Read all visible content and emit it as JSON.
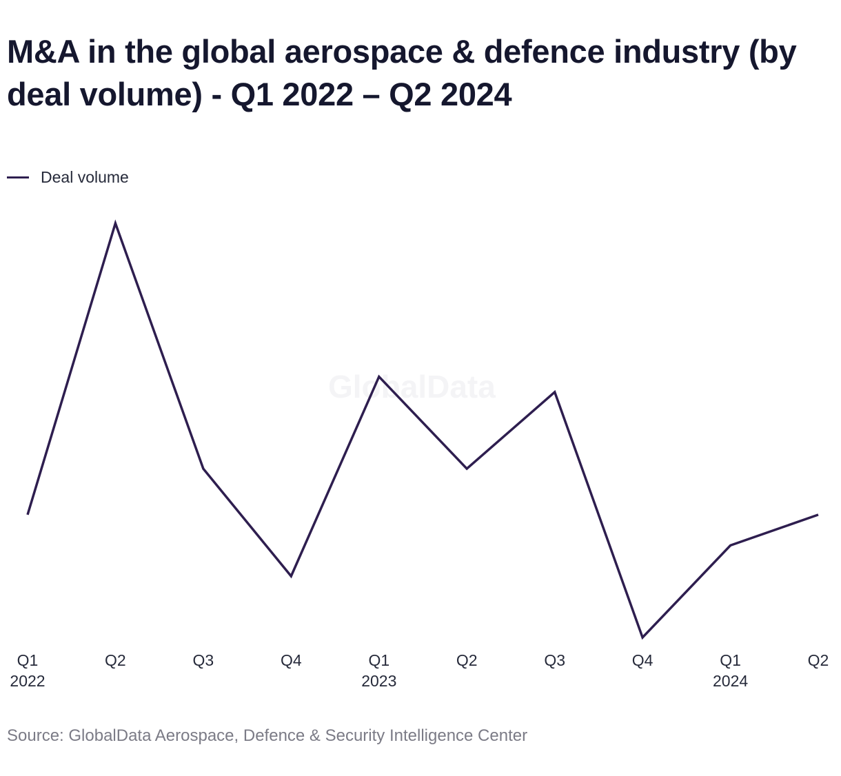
{
  "chart_data": {
    "type": "line",
    "title": "M&A in the global aerospace & defence industry (by deal volume) - Q1 2022 – Q2 2024",
    "categories": [
      "Q1 2022",
      "Q2 2022",
      "Q3 2022",
      "Q4 2022",
      "Q1 2023",
      "Q2 2023",
      "Q3 2023",
      "Q4 2023",
      "Q1 2024",
      "Q2 2024"
    ],
    "tick_labels": [
      {
        "quarter": "Q1",
        "year": "2022"
      },
      {
        "quarter": "Q2",
        "year": ""
      },
      {
        "quarter": "Q3",
        "year": ""
      },
      {
        "quarter": "Q4",
        "year": ""
      },
      {
        "quarter": "Q1",
        "year": "2023"
      },
      {
        "quarter": "Q2",
        "year": ""
      },
      {
        "quarter": "Q3",
        "year": ""
      },
      {
        "quarter": "Q4",
        "year": ""
      },
      {
        "quarter": "Q1",
        "year": "2024"
      },
      {
        "quarter": "Q2",
        "year": ""
      }
    ],
    "series": [
      {
        "name": "Deal volume",
        "values": [
          79,
          136,
          88,
          67,
          106,
          88,
          103,
          55,
          73,
          79
        ]
      }
    ],
    "y_axis_shown": false,
    "grid": false,
    "legend_position": "top-left",
    "line_color": "#2e1e4f"
  },
  "watermark": "GlobalData",
  "source": "Source: GlobalData Aerospace, Defence & Security Intelligence Center"
}
